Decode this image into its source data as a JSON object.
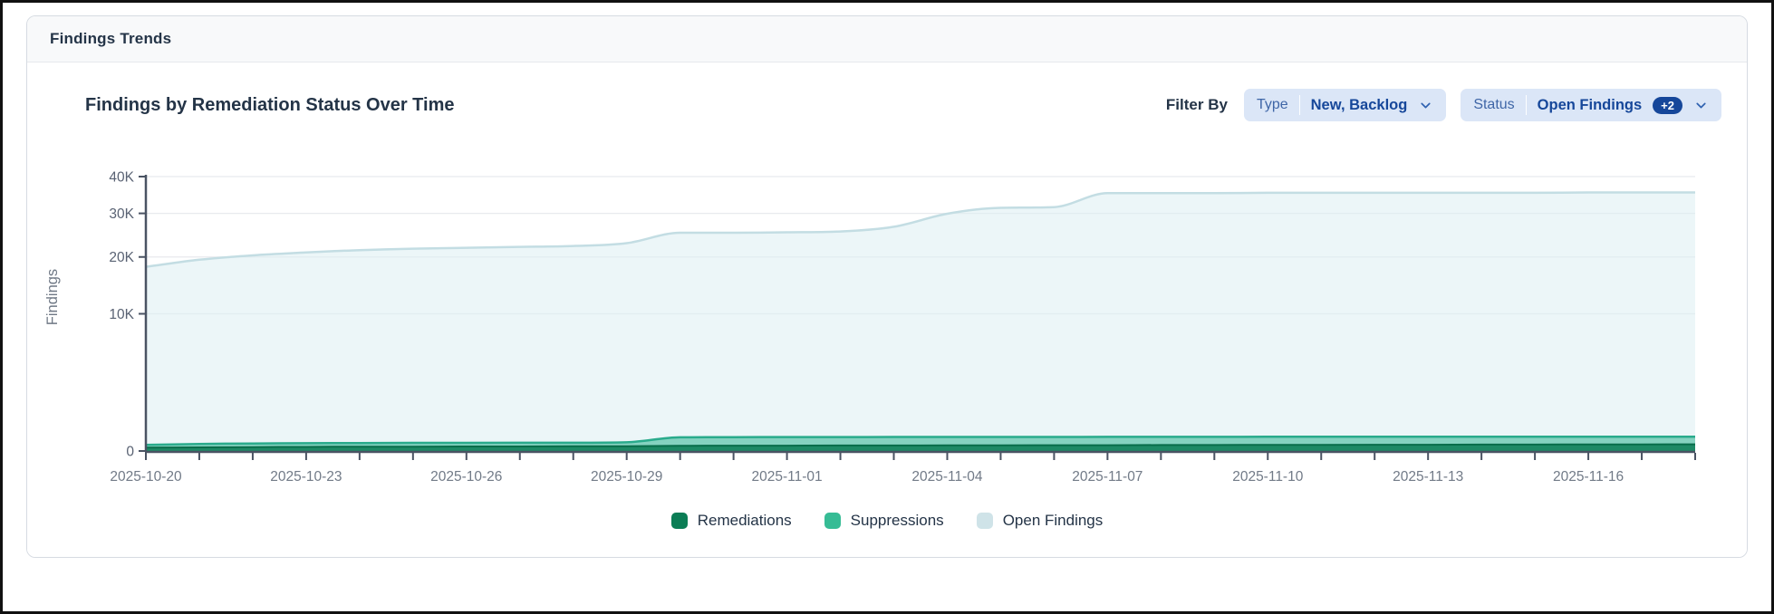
{
  "panel": {
    "title": "Findings Trends"
  },
  "chart": {
    "title": "Findings by Remediation Status Over Time"
  },
  "filters": {
    "label": "Filter By",
    "type": {
      "name": "Type",
      "value": "New, Backlog"
    },
    "status": {
      "name": "Status",
      "value": "Open Findings",
      "badge": "+2"
    }
  },
  "legend": [
    {
      "label": "Remediations",
      "color": "#0b7d55"
    },
    {
      "label": "Suppressions",
      "color": "#36bc95"
    },
    {
      "label": "Open Findings",
      "color": "#cfe3e8"
    }
  ],
  "chart_data": {
    "type": "area",
    "stacked": true,
    "title": "Findings by Remediation Status Over Time",
    "xlabel": "",
    "ylabel": "Findings",
    "y_scale": "sqrt",
    "ylim": [
      0,
      40000
    ],
    "grid": true,
    "legend_position": "bottom",
    "x": [
      "2025-10-20",
      "2025-10-21",
      "2025-10-22",
      "2025-10-23",
      "2025-10-24",
      "2025-10-25",
      "2025-10-26",
      "2025-10-27",
      "2025-10-28",
      "2025-10-29",
      "2025-10-30",
      "2025-10-31",
      "2025-11-01",
      "2025-11-02",
      "2025-11-03",
      "2025-11-04",
      "2025-11-05",
      "2025-11-06",
      "2025-11-07",
      "2025-11-08",
      "2025-11-09",
      "2025-11-10",
      "2025-11-11",
      "2025-11-12",
      "2025-11-13",
      "2025-11-14",
      "2025-11-15",
      "2025-11-16",
      "2025-11-17",
      "2025-11-18"
    ],
    "x_tick_labels": [
      "2025-10-20",
      "2025-10-23",
      "2025-10-26",
      "2025-10-29",
      "2025-11-01",
      "2025-11-04",
      "2025-11-07",
      "2025-11-10",
      "2025-11-13",
      "2025-11-16"
    ],
    "y_ticks": [
      {
        "v": 0,
        "label": "0"
      },
      {
        "v": 10000,
        "label": "10K"
      },
      {
        "v": 20000,
        "label": "20K"
      },
      {
        "v": 30000,
        "label": "30K"
      },
      {
        "v": 40000,
        "label": "40K"
      }
    ],
    "series": [
      {
        "name": "Remediations",
        "stroke": "#086d4a",
        "fill": "#0b7d55",
        "fillOpacity": 0.85,
        "strokeWidth": 2,
        "values": [
          6,
          7,
          8,
          9,
          10,
          10,
          11,
          11,
          12,
          12,
          14,
          15,
          15,
          16,
          16,
          17,
          17,
          18,
          18,
          19,
          19,
          20,
          20,
          21,
          21,
          22,
          22,
          23,
          23,
          24
        ]
      },
      {
        "name": "Suppressions",
        "stroke": "#2aab8c",
        "fill": "#31b592",
        "fillOpacity": 0.55,
        "strokeWidth": 2.5,
        "values": [
          14,
          19,
          22,
          23,
          24,
          25,
          24,
          25,
          24,
          28,
          86,
          87,
          88,
          87,
          88,
          88,
          88,
          87,
          88,
          87,
          87,
          87,
          87,
          86,
          87,
          86,
          86,
          85,
          85,
          84
        ]
      },
      {
        "name": "Open Findings",
        "stroke": "#c3dde3",
        "fill": "#ddeef3",
        "fillOpacity": 0.55,
        "strokeWidth": 2.5,
        "values": [
          18000,
          19400,
          20300,
          20900,
          21400,
          21700,
          21900,
          22100,
          22300,
          22900,
          25200,
          25200,
          25300,
          25500,
          26600,
          29800,
          31300,
          31500,
          35200,
          35200,
          35200,
          35300,
          35300,
          35300,
          35300,
          35300,
          35300,
          35400,
          35400,
          35400
        ]
      }
    ],
    "colors": {
      "axis": "#4a5363",
      "gridline": "#e8eaee",
      "y_tick_text": "#596273",
      "x_tick_text": "#717a87",
      "ylabel_text": "#6f7885"
    }
  }
}
